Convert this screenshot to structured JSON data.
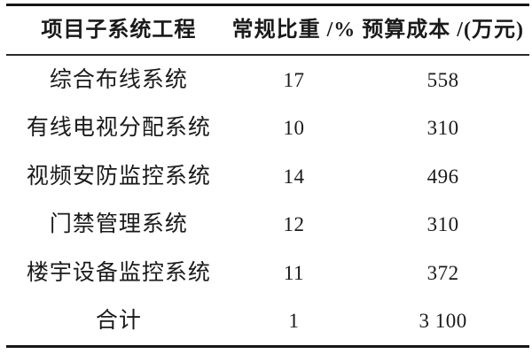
{
  "table": {
    "title_hint": "项目子系统工程预算表",
    "colors": {
      "background": "#ffffff",
      "text": "#1a1a1a",
      "rule": "#161616"
    },
    "columns": [
      {
        "label": "项目子系统工程"
      },
      {
        "label": "常规比重 /%"
      },
      {
        "label": "预算成本 /(万元)"
      }
    ],
    "rows": [
      {
        "name": "综合布线系统",
        "ratio": "17",
        "cost": "558"
      },
      {
        "name": "有线电视分配系统",
        "ratio": "10",
        "cost": "310"
      },
      {
        "name": "视频安防监控系统",
        "ratio": "14",
        "cost": "496"
      },
      {
        "name": "门禁管理系统",
        "ratio": "12",
        "cost": "310"
      },
      {
        "name": "楼宇设备监控系统",
        "ratio": "11",
        "cost": "372"
      },
      {
        "name": "合计",
        "ratio": "1",
        "cost": "3 100"
      }
    ]
  },
  "chart_data": {
    "type": "table",
    "columns": [
      "项目子系统工程",
      "常规比重 /%",
      "预算成本 /(万元)"
    ],
    "categories": [
      "综合布线系统",
      "有线电视分配系统",
      "视频安防监控系统",
      "门禁管理系统",
      "楼宇设备监控系统",
      "合计"
    ],
    "series": [
      {
        "name": "常规比重 /%",
        "values": [
          17,
          10,
          14,
          12,
          11,
          1
        ]
      },
      {
        "name": "预算成本 /(万元)",
        "values": [
          558,
          310,
          496,
          310,
          372,
          3100
        ]
      }
    ]
  }
}
